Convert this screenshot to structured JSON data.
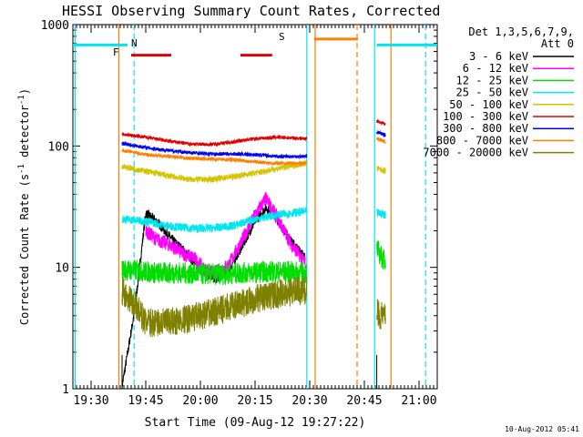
{
  "chart_data": {
    "type": "line",
    "title": "HESSI Observing Summary Count Rates, Corrected",
    "xlabel": "Start Time (09-Aug-12 19:27:22)",
    "ylabel": "Corrected Count Rate (s",
    "ylabel_sup1": "-1",
    "ylabel_mid": " detector",
    "ylabel_sup2": "-1",
    "ylabel_end": ")",
    "y_scale": "log",
    "ylim": [
      1,
      1000
    ],
    "xlim_minutes": [
      19.4167,
      21.0833
    ],
    "x_ticks": [
      {
        "label": "19:30",
        "t": 19.5
      },
      {
        "label": "19:45",
        "t": 19.75
      },
      {
        "label": "20:00",
        "t": 20.0
      },
      {
        "label": "20:15",
        "t": 20.25
      },
      {
        "label": "20:30",
        "t": 20.5
      },
      {
        "label": "20:45",
        "t": 20.75
      },
      {
        "label": "21:00",
        "t": 21.0
      }
    ],
    "y_ticks": [
      {
        "label": "1",
        "v": 1
      },
      {
        "label": "10",
        "v": 10
      },
      {
        "label": "100",
        "v": 100
      },
      {
        "label": "1000",
        "v": 1000
      }
    ],
    "legend_title": "Det 1,3,5,6,7,9,",
    "legend_subtitle": "Att 0",
    "timestamp": "10-Aug-2012 05:41",
    "flags": [
      {
        "label": "N",
        "color": "#00e5ee"
      },
      {
        "label": "F",
        "color": "#e00000"
      },
      {
        "label": "S",
        "color": "#ff7f00"
      }
    ],
    "series": [
      {
        "name": "3 - 6 keV",
        "color": "#000000"
      },
      {
        "name": "6 - 12 keV",
        "color": "#ff00ff"
      },
      {
        "name": "12 - 25 keV",
        "color": "#00dd00"
      },
      {
        "name": "25 - 50 keV",
        "color": "#00e5ee"
      },
      {
        "name": "50 - 100 keV",
        "color": "#d4c400"
      },
      {
        "name": "100 - 300 keV",
        "color": "#e00000"
      },
      {
        "name": "300 - 800 keV",
        "color": "#0000ee"
      },
      {
        "name": "800 - 7000 keV",
        "color": "#ff7f00"
      },
      {
        "name": "7000 - 20000 keV",
        "color": "#808000"
      }
    ],
    "segments": [
      {
        "start": 19.6417,
        "end": 20.4867
      },
      {
        "start": 20.8067,
        "end": 20.8467
      }
    ],
    "levels": {
      "3 - 6 keV": [
        [
          19.64,
          1.0
        ],
        [
          19.7,
          4.5
        ],
        [
          19.75,
          28
        ],
        [
          19.8,
          24
        ],
        [
          19.87,
          17
        ],
        [
          19.92,
          14
        ],
        [
          19.97,
          11
        ],
        [
          20.02,
          9
        ],
        [
          20.07,
          8
        ],
        [
          20.13,
          9.5
        ],
        [
          20.2,
          16
        ],
        [
          20.25,
          24
        ],
        [
          20.3,
          31
        ],
        [
          20.35,
          25
        ],
        [
          20.42,
          16
        ],
        [
          20.48,
          12
        ]
      ],
      "6 - 12 keV": [
        [
          19.75,
          20
        ],
        [
          19.8,
          17
        ],
        [
          19.87,
          15
        ],
        [
          19.92,
          13
        ],
        [
          19.97,
          12
        ],
        [
          20.02,
          9.5
        ],
        [
          20.07,
          9
        ],
        [
          20.13,
          10.5
        ],
        [
          20.2,
          18
        ],
        [
          20.25,
          27
        ],
        [
          20.3,
          37
        ],
        [
          20.35,
          26
        ],
        [
          20.42,
          15
        ],
        [
          20.48,
          11
        ]
      ],
      "12 - 25 keV": [
        [
          19.64,
          9.5
        ],
        [
          19.7,
          9.5
        ],
        [
          19.8,
          9
        ],
        [
          19.9,
          9
        ],
        [
          20.0,
          8.8
        ],
        [
          20.1,
          8.8
        ],
        [
          20.2,
          9.0
        ],
        [
          20.3,
          9.2
        ],
        [
          20.4,
          9.2
        ],
        [
          20.48,
          9.0
        ],
        [
          20.81,
          14
        ],
        [
          20.83,
          12
        ],
        [
          20.85,
          11
        ]
      ],
      "25 - 50 keV": [
        [
          19.64,
          25
        ],
        [
          19.75,
          24
        ],
        [
          19.85,
          22
        ],
        [
          19.95,
          21
        ],
        [
          20.05,
          21
        ],
        [
          20.15,
          22
        ],
        [
          20.25,
          25
        ],
        [
          20.35,
          27
        ],
        [
          20.48,
          29
        ],
        [
          20.81,
          28
        ],
        [
          20.85,
          27
        ]
      ],
      "50 - 100 keV": [
        [
          19.64,
          68
        ],
        [
          19.75,
          62
        ],
        [
          19.85,
          57
        ],
        [
          19.95,
          53
        ],
        [
          20.05,
          53
        ],
        [
          20.15,
          56
        ],
        [
          20.25,
          60
        ],
        [
          20.35,
          65
        ],
        [
          20.48,
          72
        ],
        [
          20.81,
          65
        ],
        [
          20.85,
          62
        ]
      ],
      "100 - 300 keV": [
        [
          19.64,
          125
        ],
        [
          19.75,
          118
        ],
        [
          19.85,
          110
        ],
        [
          19.95,
          104
        ],
        [
          20.05,
          103
        ],
        [
          20.15,
          108
        ],
        [
          20.25,
          115
        ],
        [
          20.35,
          118
        ],
        [
          20.48,
          115
        ],
        [
          20.81,
          160
        ],
        [
          20.85,
          150
        ]
      ],
      "300 - 800 keV": [
        [
          19.64,
          105
        ],
        [
          19.75,
          97
        ],
        [
          19.85,
          92
        ],
        [
          19.95,
          88
        ],
        [
          20.05,
          86
        ],
        [
          20.15,
          86
        ],
        [
          20.25,
          85
        ],
        [
          20.35,
          82
        ],
        [
          20.48,
          82
        ],
        [
          20.81,
          130
        ],
        [
          20.85,
          122
        ]
      ],
      "800 - 7000 keV": [
        [
          19.64,
          92
        ],
        [
          19.75,
          85
        ],
        [
          19.85,
          82
        ],
        [
          19.95,
          79
        ],
        [
          20.05,
          78
        ],
        [
          20.15,
          77
        ],
        [
          20.25,
          74
        ],
        [
          20.35,
          72
        ],
        [
          20.48,
          72
        ],
        [
          20.81,
          115
        ],
        [
          20.85,
          108
        ]
      ],
      "7000 - 20000 keV": [
        [
          19.64,
          6.5
        ],
        [
          19.7,
          5
        ],
        [
          19.75,
          3.5
        ],
        [
          19.85,
          3.5
        ],
        [
          19.95,
          3.8
        ],
        [
          20.05,
          4.2
        ],
        [
          20.15,
          4.8
        ],
        [
          20.25,
          5.5
        ],
        [
          20.35,
          6
        ],
        [
          20.48,
          6.5
        ],
        [
          20.81,
          4.2
        ],
        [
          20.85,
          3.8
        ]
      ]
    },
    "flag_bars": [
      {
        "label": "N",
        "color": "#00e5ee",
        "y": 680,
        "spans": [
          [
            19.4167,
            19.6667
          ],
          [
            20.8067,
            21.0833
          ]
        ]
      },
      {
        "label": "F",
        "color": "#e00000",
        "y": 560,
        "spans": [
          [
            19.6833,
            19.8667
          ],
          [
            20.1833,
            20.3283
          ]
        ]
      },
      {
        "label": "S",
        "color": "#ff7f00",
        "y": 760,
        "spans": [
          [
            20.52,
            20.72
          ]
        ]
      }
    ],
    "vlines": [
      {
        "t": 19.4267,
        "color": "#00e5ee",
        "dash": false
      },
      {
        "t": 19.6967,
        "color": "#00e5ee",
        "dash": true
      },
      {
        "t": 19.6267,
        "color": "#ff7f00",
        "dash": false
      },
      {
        "t": 20.4867,
        "color": "#00e5ee",
        "dash": false
      },
      {
        "t": 20.525,
        "color": "#ff7f00",
        "dash": false
      },
      {
        "t": 20.7167,
        "color": "#ff7f00",
        "dash": true
      },
      {
        "t": 20.7967,
        "color": "#00e5ee",
        "dash": false
      },
      {
        "t": 20.8717,
        "color": "#ff7f00",
        "dash": false
      },
      {
        "t": 21.03,
        "color": "#00e5ee",
        "dash": true
      }
    ]
  }
}
